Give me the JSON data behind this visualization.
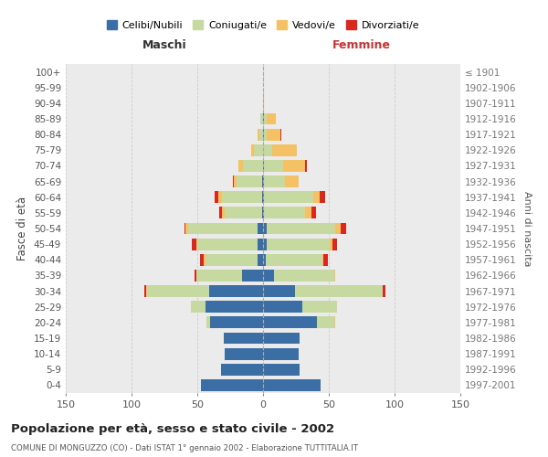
{
  "age_groups": [
    "0-4",
    "5-9",
    "10-14",
    "15-19",
    "20-24",
    "25-29",
    "30-34",
    "35-39",
    "40-44",
    "45-49",
    "50-54",
    "55-59",
    "60-64",
    "65-69",
    "70-74",
    "75-79",
    "80-84",
    "85-89",
    "90-94",
    "95-99",
    "100+"
  ],
  "birth_years": [
    "1997-2001",
    "1992-1996",
    "1987-1991",
    "1982-1986",
    "1977-1981",
    "1972-1976",
    "1967-1971",
    "1962-1966",
    "1957-1961",
    "1952-1956",
    "1947-1951",
    "1942-1946",
    "1937-1941",
    "1932-1936",
    "1927-1931",
    "1922-1926",
    "1917-1921",
    "1912-1916",
    "1907-1911",
    "1902-1906",
    "≤ 1901"
  ],
  "male": {
    "celibi": [
      47,
      32,
      29,
      30,
      40,
      44,
      41,
      16,
      4,
      4,
      4,
      1,
      1,
      1,
      0,
      0,
      0,
      0,
      0,
      0,
      0
    ],
    "coniugati": [
      0,
      0,
      0,
      0,
      3,
      11,
      47,
      35,
      40,
      46,
      53,
      28,
      30,
      19,
      15,
      7,
      3,
      2,
      0,
      0,
      0
    ],
    "vedovi": [
      0,
      0,
      0,
      0,
      0,
      0,
      1,
      0,
      1,
      1,
      2,
      2,
      3,
      2,
      4,
      2,
      1,
      0,
      0,
      0,
      0
    ],
    "divorziati": [
      0,
      0,
      0,
      0,
      0,
      0,
      1,
      1,
      3,
      3,
      1,
      2,
      3,
      1,
      0,
      0,
      0,
      0,
      0,
      0,
      0
    ]
  },
  "female": {
    "nubili": [
      44,
      28,
      27,
      28,
      41,
      30,
      24,
      8,
      2,
      3,
      3,
      1,
      1,
      1,
      1,
      0,
      1,
      1,
      0,
      0,
      0
    ],
    "coniugate": [
      0,
      0,
      0,
      0,
      13,
      26,
      67,
      46,
      43,
      48,
      52,
      31,
      37,
      16,
      14,
      7,
      2,
      2,
      0,
      0,
      0
    ],
    "vedove": [
      0,
      0,
      0,
      0,
      1,
      0,
      0,
      1,
      1,
      2,
      4,
      5,
      5,
      10,
      17,
      19,
      10,
      7,
      1,
      0,
      0
    ],
    "divorziate": [
      0,
      0,
      0,
      0,
      0,
      0,
      2,
      0,
      3,
      3,
      4,
      3,
      4,
      0,
      1,
      0,
      1,
      0,
      0,
      0,
      0
    ]
  },
  "colors": {
    "celibi": "#3a6ea5",
    "coniugati": "#c5d9a0",
    "vedovi": "#f5c165",
    "divorziati": "#d9281e"
  },
  "xlim": 150,
  "title": "Popolazione per età, sesso e stato civile - 2002",
  "subtitle": "COMUNE DI MONGUZZO (CO) - Dati ISTAT 1° gennaio 2002 - Elaborazione TUTTITALIA.IT",
  "ylabel": "Fasce di età",
  "ylabel_right": "Anni di nascita",
  "legend_labels": [
    "Celibi/Nubili",
    "Coniugati/e",
    "Vedovi/e",
    "Divorziati/e"
  ],
  "maschi_label": "Maschi",
  "femmine_label": "Femmine",
  "background_color": "#ffffff",
  "grid_color": "#cccccc"
}
